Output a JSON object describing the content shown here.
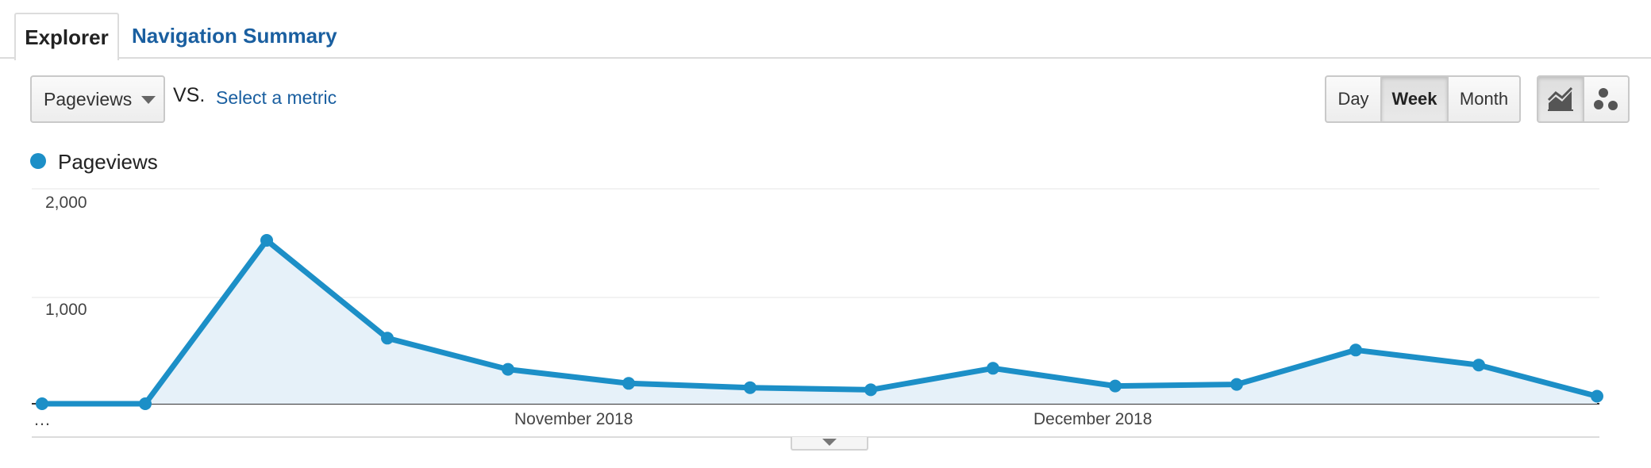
{
  "tabs": {
    "explorer": "Explorer",
    "navigation_summary": "Navigation Summary"
  },
  "controls": {
    "metric_selected": "Pageviews",
    "vs_label": "VS.",
    "select_metric_link": "Select a metric",
    "period_buttons": [
      "Day",
      "Week",
      "Month"
    ],
    "period_selected": "Week",
    "view_buttons": [
      "line-chart-icon",
      "motion-chart-icon"
    ],
    "view_selected": "line-chart-icon"
  },
  "legend": {
    "series_name": "Pageviews",
    "color": "#1c8fc7"
  },
  "chart_data": {
    "type": "area",
    "series": [
      {
        "name": "Pageviews",
        "values": [
          0,
          0,
          1520,
          610,
          320,
          190,
          150,
          130,
          330,
          165,
          180,
          500,
          360,
          70
        ]
      }
    ],
    "yticks": [
      "2,000",
      "1,000"
    ],
    "ylim": [
      0,
      2000
    ],
    "xtick_labels": [
      "…",
      "November 2018",
      "December 2018"
    ],
    "grid": true,
    "line_color": "#1c8fc7",
    "fill_color": "#e6f1f9"
  }
}
